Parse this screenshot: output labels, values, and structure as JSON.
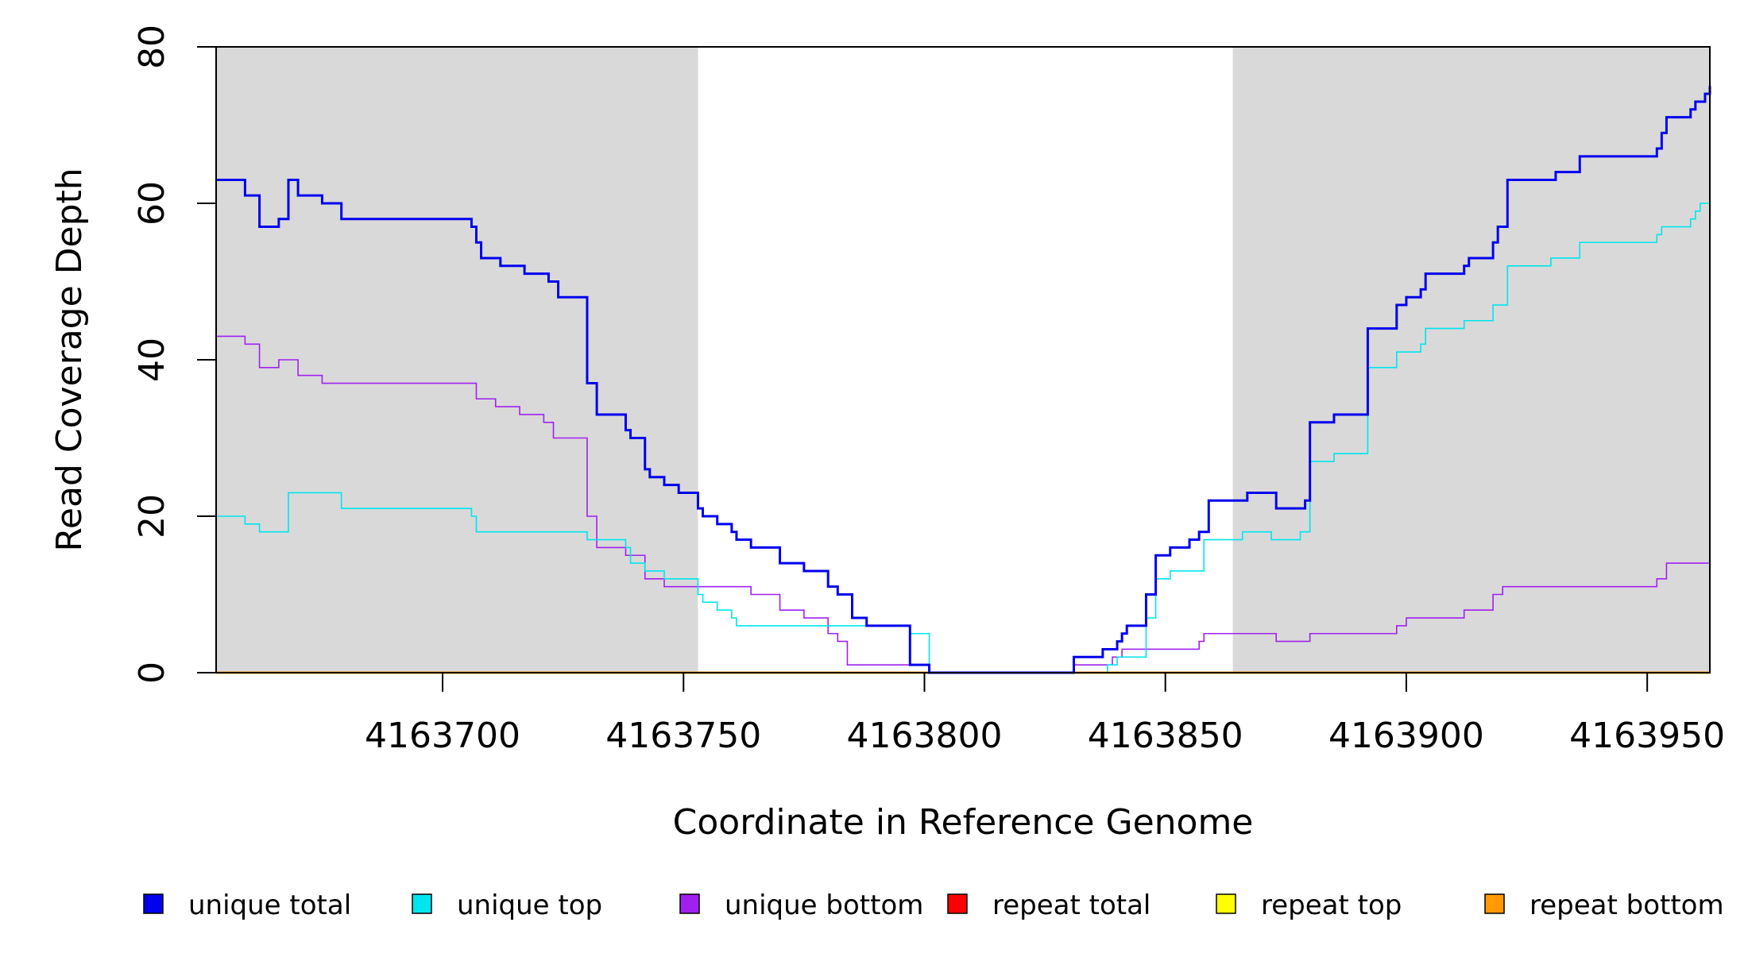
{
  "chart_data": {
    "type": "line",
    "title": "",
    "xlabel": "Coordinate in Reference Genome",
    "ylabel": "Read Coverage Depth",
    "xlim": [
      4163653,
      4163963
    ],
    "ylim": [
      0,
      80
    ],
    "x_ticks": [
      4163700,
      4163750,
      4163800,
      4163850,
      4163900,
      4163950
    ],
    "x_tick_labels": [
      "4163700",
      "4163750",
      "4163800",
      "4163850",
      "4163900",
      "4163950"
    ],
    "y_ticks": [
      0,
      20,
      40,
      60,
      80
    ],
    "y_tick_labels": [
      "0",
      "20",
      "40",
      "60",
      "80"
    ],
    "grid": false,
    "legend_position": "bottom",
    "shaded_regions": [
      {
        "x_start": 4163653,
        "x_end": 4163753,
        "color": "#d9d9d9"
      },
      {
        "x_start": 4163864,
        "x_end": 4163963,
        "color": "#d9d9d9"
      }
    ],
    "series": [
      {
        "name": "unique total",
        "color": "#0000ee",
        "stroke": 3,
        "points": [
          [
            4163653,
            63
          ],
          [
            4163659,
            61
          ],
          [
            4163662,
            57
          ],
          [
            4163666,
            58
          ],
          [
            4163668,
            63
          ],
          [
            4163670,
            61
          ],
          [
            4163675,
            60
          ],
          [
            4163679,
            58
          ],
          [
            4163706,
            57
          ],
          [
            4163707,
            55
          ],
          [
            4163708,
            53
          ],
          [
            4163712,
            52
          ],
          [
            4163717,
            51
          ],
          [
            4163722,
            50
          ],
          [
            4163724,
            48
          ],
          [
            4163730,
            37
          ],
          [
            4163732,
            33
          ],
          [
            4163738,
            31
          ],
          [
            4163739,
            30
          ],
          [
            4163742,
            26
          ],
          [
            4163743,
            25
          ],
          [
            4163746,
            24
          ],
          [
            4163749,
            23
          ],
          [
            4163753,
            21
          ],
          [
            4163754,
            20
          ],
          [
            4163757,
            19
          ],
          [
            4163760,
            18
          ],
          [
            4163761,
            17
          ],
          [
            4163764,
            16
          ],
          [
            4163770,
            14
          ],
          [
            4163775,
            13
          ],
          [
            4163780,
            11
          ],
          [
            4163782,
            10
          ],
          [
            4163785,
            7
          ],
          [
            4163788,
            6
          ],
          [
            4163797,
            1
          ],
          [
            4163801,
            0
          ],
          [
            4163831,
            2
          ],
          [
            4163837,
            3
          ],
          [
            4163840,
            4
          ],
          [
            4163841,
            5
          ],
          [
            4163842,
            6
          ],
          [
            4163846,
            10
          ],
          [
            4163848,
            15
          ],
          [
            4163851,
            16
          ],
          [
            4163855,
            17
          ],
          [
            4163857,
            18
          ],
          [
            4163859,
            22
          ],
          [
            4163867,
            23
          ],
          [
            4163873,
            21
          ],
          [
            4163879,
            22
          ],
          [
            4163880,
            32
          ],
          [
            4163885,
            33
          ],
          [
            4163892,
            44
          ],
          [
            4163898,
            47
          ],
          [
            4163900,
            48
          ],
          [
            4163903,
            49
          ],
          [
            4163904,
            51
          ],
          [
            4163912,
            52
          ],
          [
            4163913,
            53
          ],
          [
            4163918,
            55
          ],
          [
            4163919,
            57
          ],
          [
            4163921,
            63
          ],
          [
            4163931,
            64
          ],
          [
            4163936,
            66
          ],
          [
            4163952,
            67
          ],
          [
            4163953,
            69
          ],
          [
            4163954,
            71
          ],
          [
            4163959,
            72
          ],
          [
            4163960,
            73
          ],
          [
            4163962,
            74
          ],
          [
            4163963,
            75
          ]
        ]
      },
      {
        "name": "unique top",
        "color": "#00e5ee",
        "stroke": 1.6,
        "points": [
          [
            4163653,
            20
          ],
          [
            4163659,
            19
          ],
          [
            4163662,
            18
          ],
          [
            4163668,
            23
          ],
          [
            4163679,
            21
          ],
          [
            4163706,
            20
          ],
          [
            4163707,
            18
          ],
          [
            4163730,
            17
          ],
          [
            4163738,
            16
          ],
          [
            4163739,
            14
          ],
          [
            4163742,
            13
          ],
          [
            4163746,
            12
          ],
          [
            4163753,
            10
          ],
          [
            4163754,
            9
          ],
          [
            4163757,
            8
          ],
          [
            4163760,
            7
          ],
          [
            4163761,
            6
          ],
          [
            4163797,
            5
          ],
          [
            4163801,
            0
          ],
          [
            4163838,
            1
          ],
          [
            4163840,
            2
          ],
          [
            4163846,
            7
          ],
          [
            4163848,
            12
          ],
          [
            4163851,
            13
          ],
          [
            4163858,
            17
          ],
          [
            4163866,
            18
          ],
          [
            4163872,
            17
          ],
          [
            4163878,
            18
          ],
          [
            4163880,
            27
          ],
          [
            4163885,
            28
          ],
          [
            4163892,
            39
          ],
          [
            4163898,
            41
          ],
          [
            4163903,
            42
          ],
          [
            4163904,
            44
          ],
          [
            4163912,
            45
          ],
          [
            4163918,
            47
          ],
          [
            4163921,
            52
          ],
          [
            4163930,
            53
          ],
          [
            4163936,
            55
          ],
          [
            4163952,
            56
          ],
          [
            4163953,
            57
          ],
          [
            4163959,
            58
          ],
          [
            4163960,
            59
          ],
          [
            4163961,
            60
          ],
          [
            4163963,
            61
          ]
        ]
      },
      {
        "name": "unique bottom",
        "color": "#a020f0",
        "stroke": 1.6,
        "points": [
          [
            4163653,
            43
          ],
          [
            4163659,
            42
          ],
          [
            4163662,
            39
          ],
          [
            4163666,
            40
          ],
          [
            4163670,
            38
          ],
          [
            4163675,
            37
          ],
          [
            4163707,
            35
          ],
          [
            4163711,
            34
          ],
          [
            4163716,
            33
          ],
          [
            4163721,
            32
          ],
          [
            4163723,
            30
          ],
          [
            4163730,
            20
          ],
          [
            4163732,
            16
          ],
          [
            4163738,
            15
          ],
          [
            4163742,
            12
          ],
          [
            4163746,
            11
          ],
          [
            4163753,
            11
          ],
          [
            4163764,
            10
          ],
          [
            4163770,
            8
          ],
          [
            4163775,
            7
          ],
          [
            4163780,
            5
          ],
          [
            4163782,
            4
          ],
          [
            4163784,
            1
          ],
          [
            4163797,
            1
          ],
          [
            4163801,
            0
          ],
          [
            4163831,
            1
          ],
          [
            4163839,
            2
          ],
          [
            4163841,
            3
          ],
          [
            4163857,
            4
          ],
          [
            4163858,
            5
          ],
          [
            4163873,
            4
          ],
          [
            4163880,
            5
          ],
          [
            4163898,
            6
          ],
          [
            4163900,
            7
          ],
          [
            4163912,
            8
          ],
          [
            4163918,
            10
          ],
          [
            4163920,
            11
          ],
          [
            4163952,
            12
          ],
          [
            4163954,
            14
          ],
          [
            4163963,
            16
          ]
        ]
      },
      {
        "name": "repeat total",
        "color": "#ff0000",
        "stroke": 2,
        "points": [
          [
            4163653,
            0
          ],
          [
            4163963,
            0
          ]
        ]
      },
      {
        "name": "repeat top",
        "color": "#ffff00",
        "stroke": 2,
        "points": [
          [
            4163653,
            0
          ],
          [
            4163963,
            0
          ]
        ]
      },
      {
        "name": "repeat bottom",
        "color": "#ff9900",
        "stroke": 3,
        "points": [
          [
            4163653,
            0
          ],
          [
            4163963,
            0
          ]
        ]
      }
    ]
  }
}
